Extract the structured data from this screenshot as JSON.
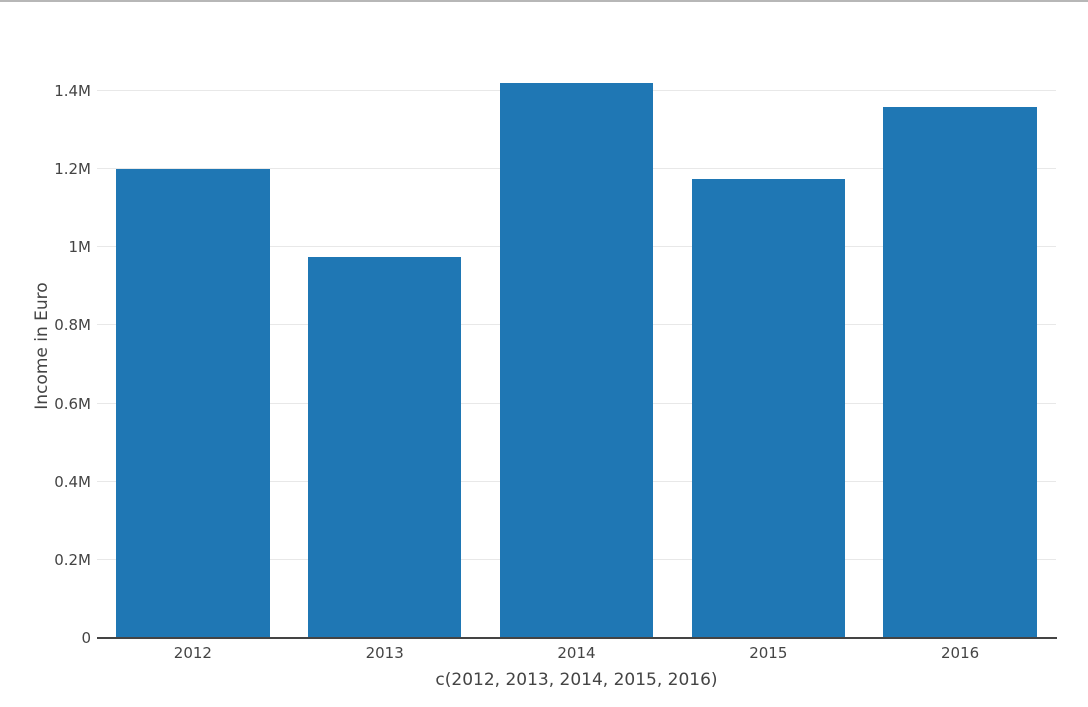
{
  "window": {
    "top_border_color": "#b7b7b7"
  },
  "chart_data": {
    "type": "bar",
    "categories": [
      "2012",
      "2013",
      "2014",
      "2015",
      "2016"
    ],
    "values": [
      1200000,
      975000,
      1420000,
      1175000,
      1360000
    ],
    "title": "",
    "xlabel": "c(2012, 2013, 2014, 2015, 2016)",
    "ylabel": "Income in Euro",
    "ylim": [
      0,
      1494000
    ],
    "yticks": [
      {
        "value": 0,
        "label": "0"
      },
      {
        "value": 200000,
        "label": "0.2M"
      },
      {
        "value": 400000,
        "label": "0.4M"
      },
      {
        "value": 600000,
        "label": "0.6M"
      },
      {
        "value": 800000,
        "label": "0.8M"
      },
      {
        "value": 1000000,
        "label": "1M"
      },
      {
        "value": 1200000,
        "label": "1.2M"
      },
      {
        "value": 1400000,
        "label": "1.4M"
      }
    ],
    "grid": true,
    "legend": "none",
    "bar_color": "#1f77b4",
    "gridline_color": "#e8e8e8",
    "axis_line_color": "#444444",
    "tick_label_color": "#444444",
    "axis_title_color": "#444444",
    "background_color": "#ffffff"
  }
}
